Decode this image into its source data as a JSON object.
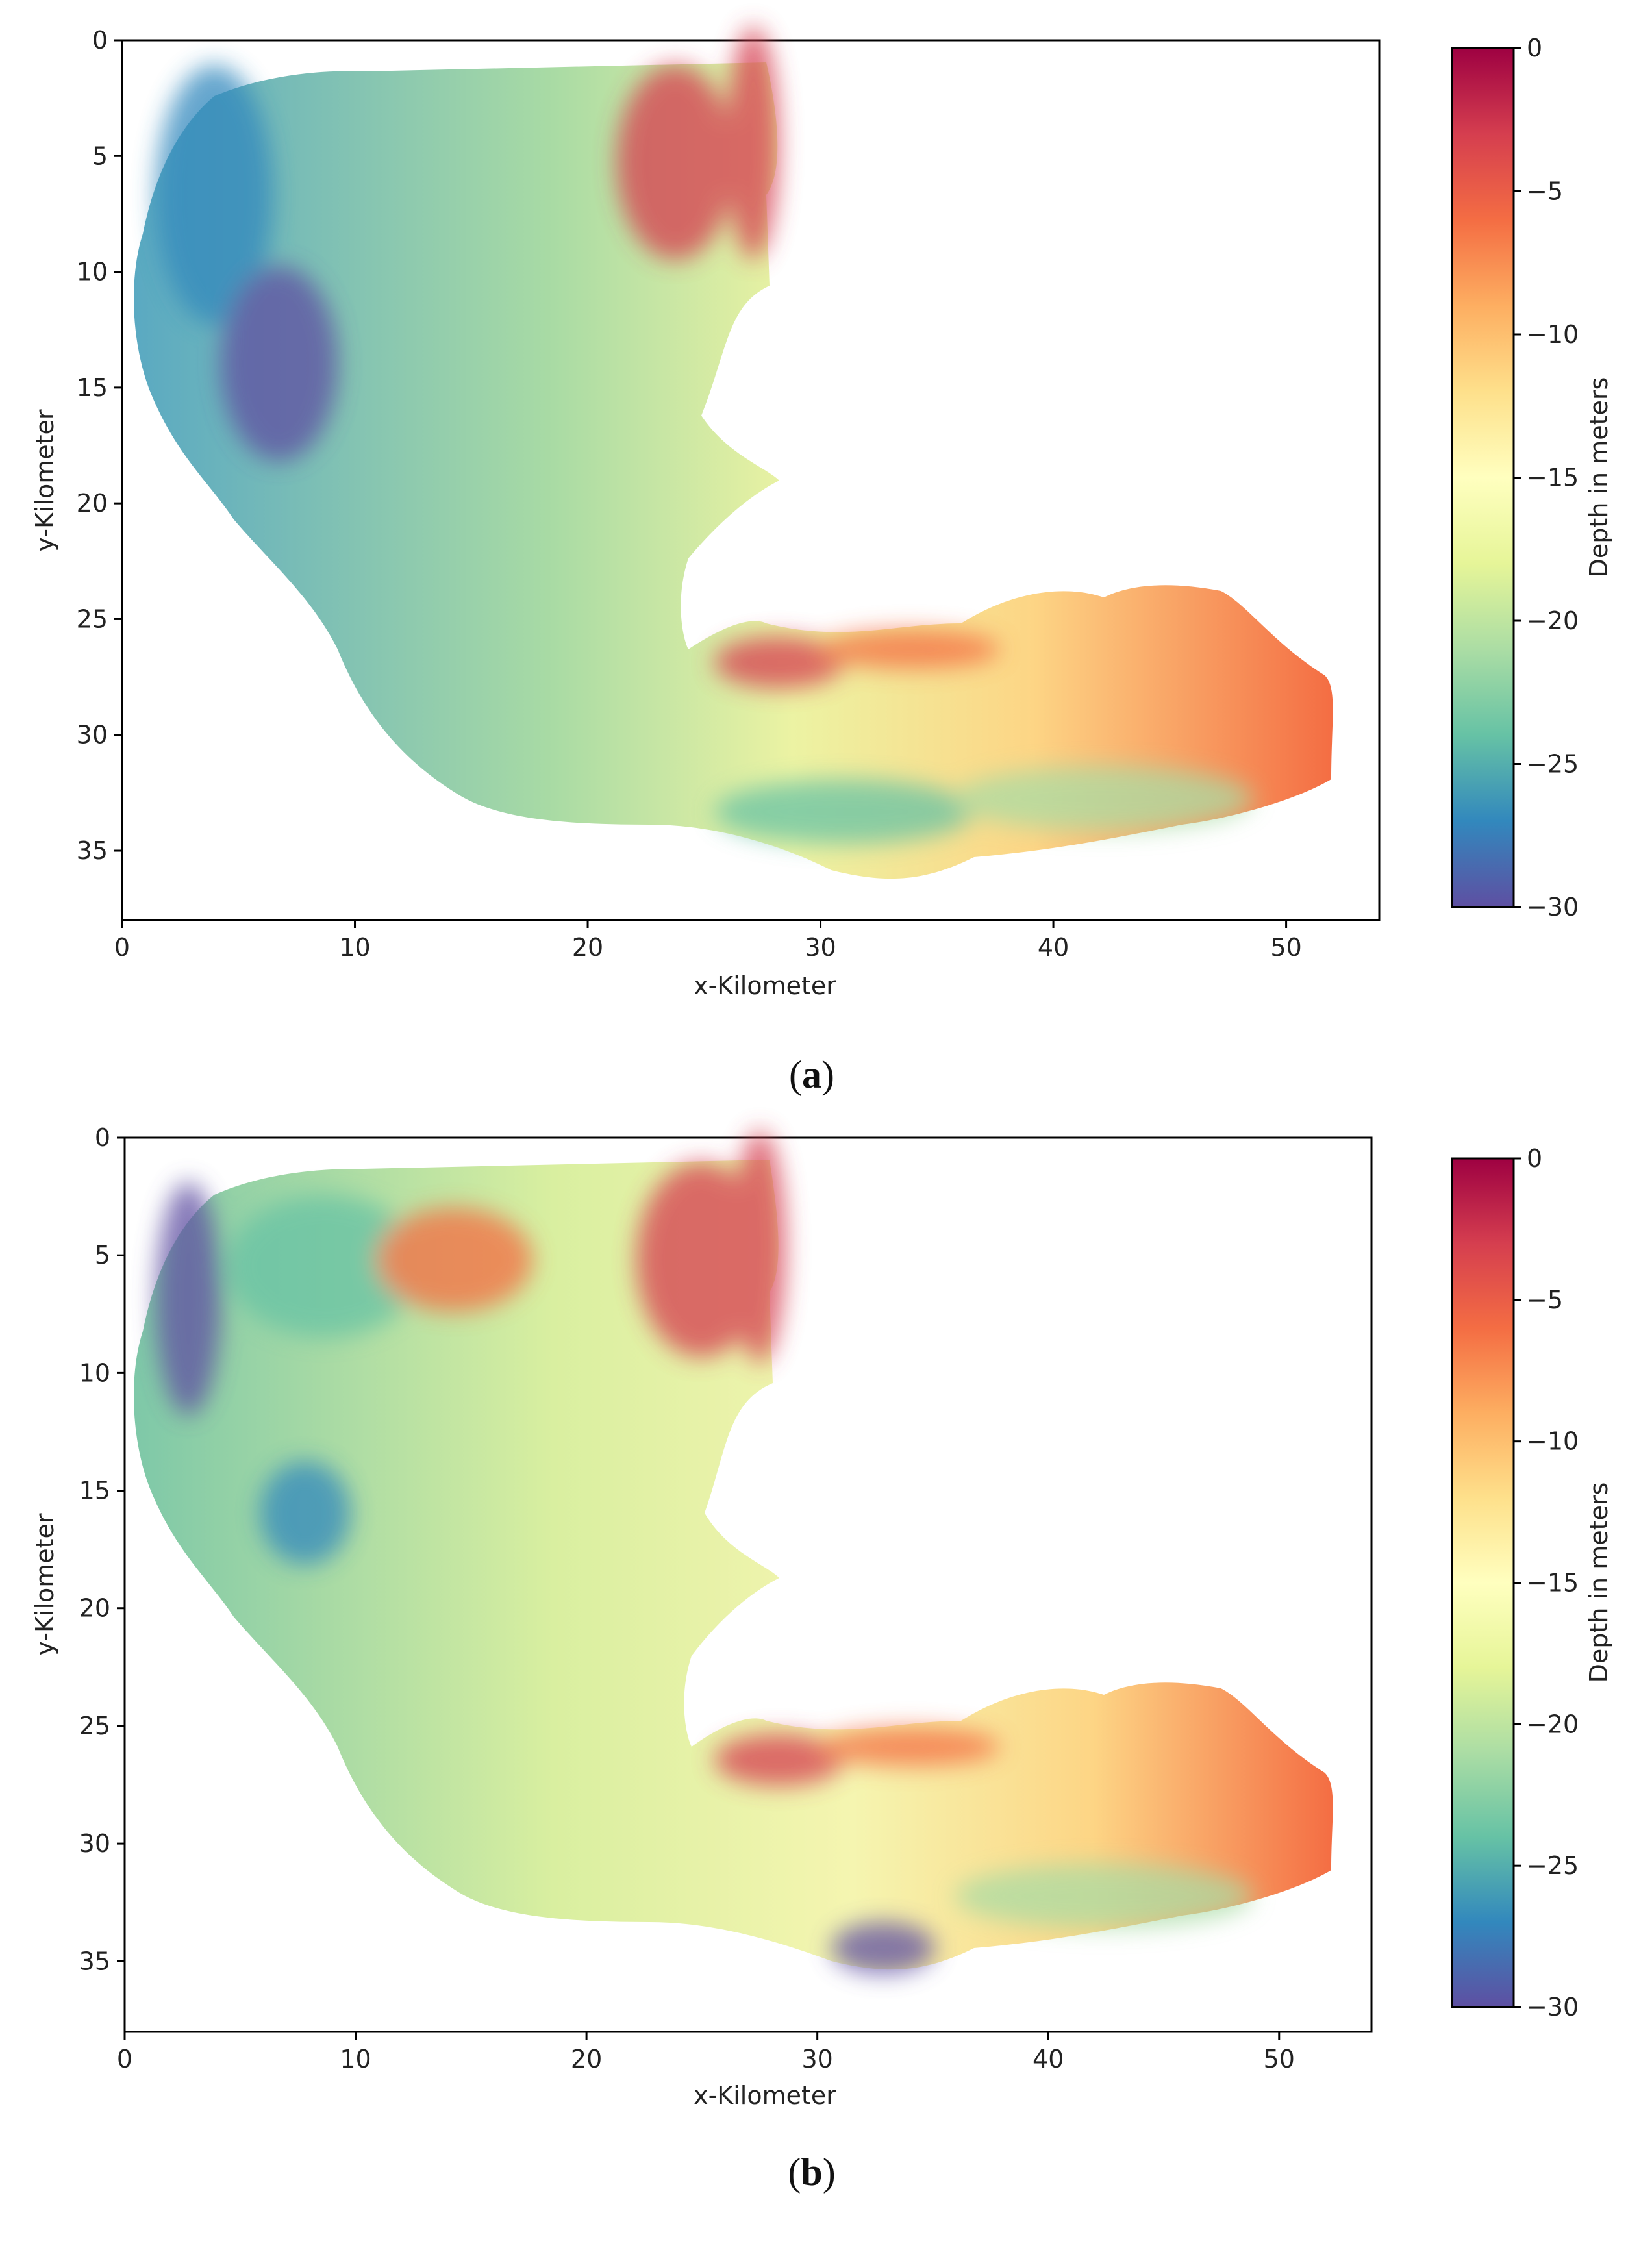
{
  "chart_data": [
    {
      "type": "heatmap",
      "panel_label": "a",
      "xlabel": "x-Kilometer",
      "ylabel": "y-Kilometer",
      "colorbar_label": "Depth in meters",
      "xlim": [
        0,
        54
      ],
      "ylim": [
        38,
        0
      ],
      "x_ticks": [
        0,
        10,
        20,
        30,
        40,
        50
      ],
      "y_ticks": [
        0,
        5,
        10,
        15,
        20,
        25,
        30,
        35
      ],
      "colorbar_range": [
        -30,
        0
      ],
      "colorbar_ticks": [
        0,
        -5,
        -10,
        -15,
        -20,
        -25,
        -30
      ],
      "colormap": [
        "#5e4fa2",
        "#3288bd",
        "#66c2a5",
        "#abdda4",
        "#e6f598",
        "#ffffbf",
        "#fee08b",
        "#fdae61",
        "#f46d43",
        "#d53e4f",
        "#9e0142"
      ],
      "grid": false
    },
    {
      "type": "heatmap",
      "panel_label": "b",
      "xlabel": "x-Kilometer",
      "ylabel": "y-Kilometer",
      "colorbar_label": "Depth in meters",
      "xlim": [
        0,
        54
      ],
      "ylim": [
        38,
        0
      ],
      "x_ticks": [
        0,
        10,
        20,
        30,
        40,
        50
      ],
      "y_ticks": [
        0,
        5,
        10,
        15,
        20,
        25,
        30,
        35
      ],
      "colorbar_range": [
        -30,
        0
      ],
      "colorbar_ticks": [
        0,
        -5,
        -10,
        -15,
        -20,
        -25,
        -30
      ],
      "colormap": [
        "#5e4fa2",
        "#3288bd",
        "#66c2a5",
        "#abdda4",
        "#e6f598",
        "#ffffbf",
        "#fee08b",
        "#fdae61",
        "#f46d43",
        "#d53e4f",
        "#9e0142"
      ],
      "grid": false
    }
  ]
}
